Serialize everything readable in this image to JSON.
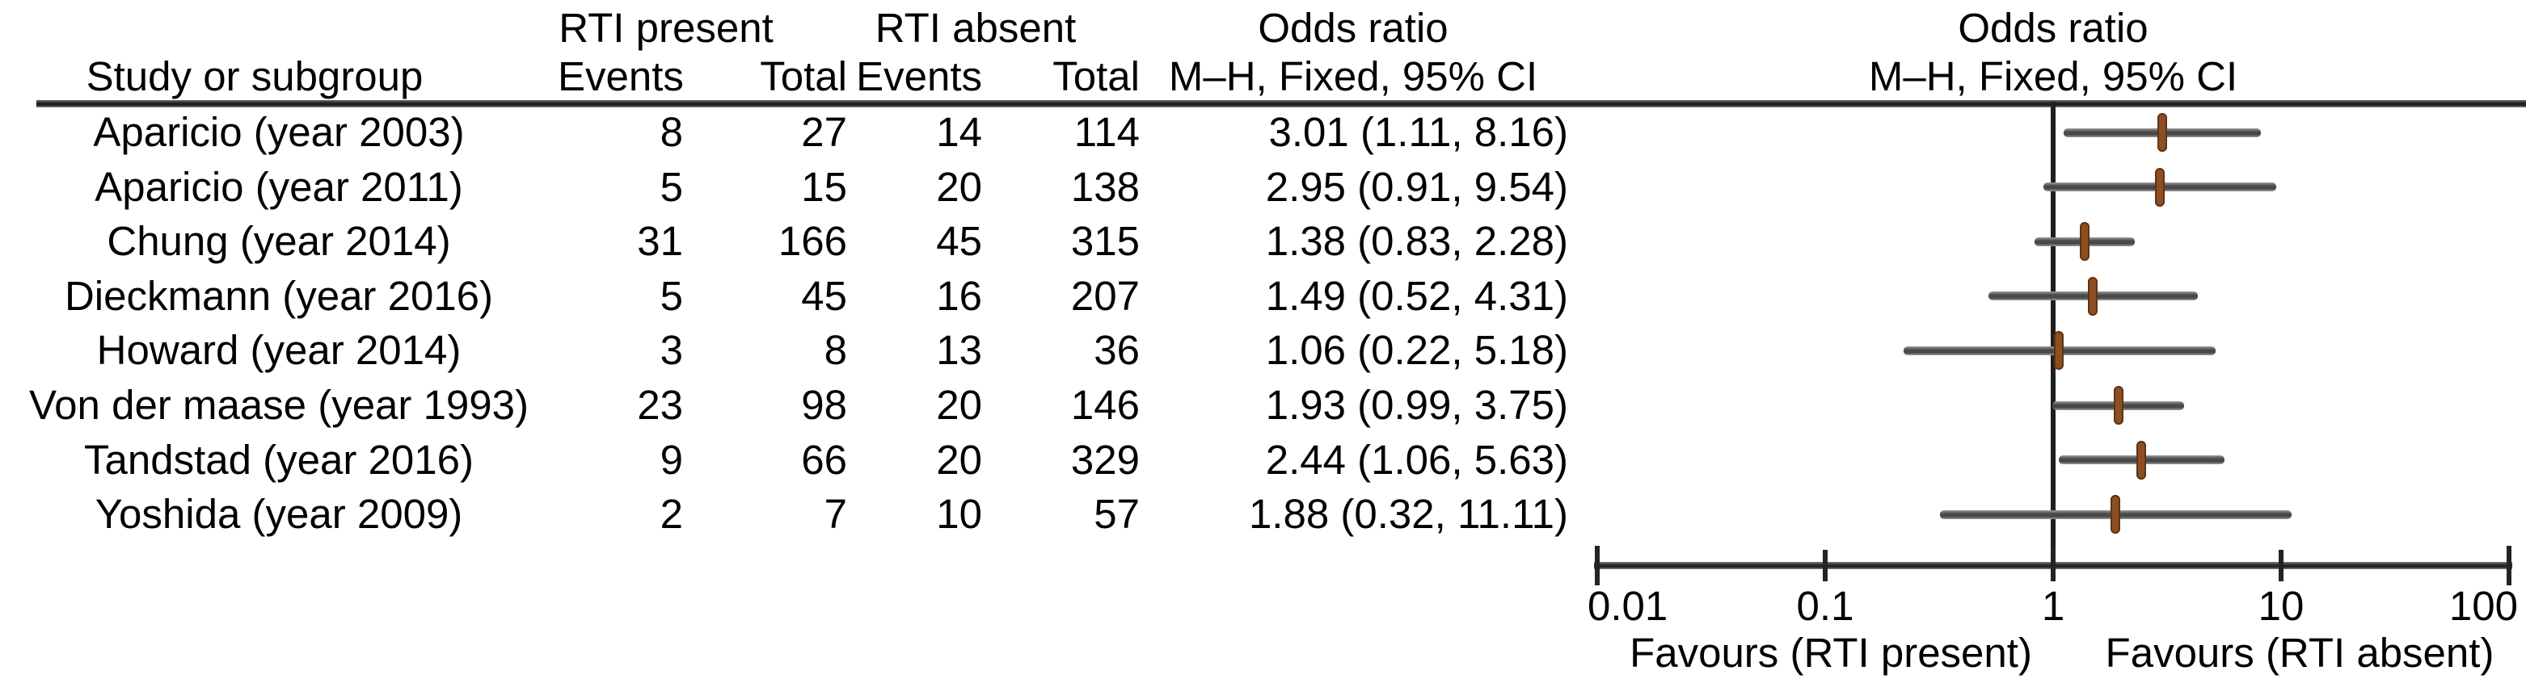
{
  "table": {
    "group_headers": {
      "rti_present": "RTI present",
      "rti_absent": "RTI absent"
    },
    "or_column_header": {
      "line1": "Odds ratio",
      "line2": "M–H, Fixed, 95% CI"
    },
    "column_headers": {
      "study": "Study or subgroup",
      "events_present": "Events",
      "total_present": "Total",
      "events_absent": "Events",
      "total_absent": "Total"
    }
  },
  "plot_header": {
    "line1": "Odds ratio",
    "line2": "M–H, Fixed, 95% CI"
  },
  "axis": {
    "tick_labels": [
      "0.01",
      "0.1",
      "1",
      "10",
      "100"
    ],
    "favours_left": "Favours (RTI present)",
    "favours_right": "Favours (RTI absent)"
  },
  "colors": {
    "text": "#000000",
    "rule": "#1d1d1d",
    "reference_line": "#1f1f1f",
    "ci_line": "#484848",
    "marker": "#8d4e24"
  },
  "chart_data": {
    "type": "forest",
    "effect_measure": "Odds ratio (M–H, Fixed, 95% CI)",
    "x_scale": "log10",
    "xlim": [
      0.01,
      100
    ],
    "x_ticks": [
      0.01,
      0.1,
      1,
      10,
      100
    ],
    "reference_line": 1,
    "legend_left": "Favours (RTI present)",
    "legend_right": "Favours (RTI absent)",
    "studies": [
      {
        "label": "Aparicio (year 2003)",
        "events_present": 8,
        "total_present": 27,
        "events_absent": 14,
        "total_absent": 114,
        "or": 3.01,
        "ci_low": 1.11,
        "ci_high": 8.16,
        "or_text": "3.01 (1.11, 8.16)"
      },
      {
        "label": "Aparicio (year 2011)",
        "events_present": 5,
        "total_present": 15,
        "events_absent": 20,
        "total_absent": 138,
        "or": 2.95,
        "ci_low": 0.91,
        "ci_high": 9.54,
        "or_text": "2.95 (0.91, 9.54)"
      },
      {
        "label": "Chung (year 2014)",
        "events_present": 31,
        "total_present": 166,
        "events_absent": 45,
        "total_absent": 315,
        "or": 1.38,
        "ci_low": 0.83,
        "ci_high": 2.28,
        "or_text": "1.38 (0.83, 2.28)"
      },
      {
        "label": "Dieckmann (year 2016)",
        "events_present": 5,
        "total_present": 45,
        "events_absent": 16,
        "total_absent": 207,
        "or": 1.49,
        "ci_low": 0.52,
        "ci_high": 4.31,
        "or_text": "1.49 (0.52, 4.31)"
      },
      {
        "label": "Howard (year 2014)",
        "events_present": 3,
        "total_present": 8,
        "events_absent": 13,
        "total_absent": 36,
        "or": 1.06,
        "ci_low": 0.22,
        "ci_high": 5.18,
        "or_text": "1.06 (0.22, 5.18)"
      },
      {
        "label": "Von der maase (year 1993)",
        "events_present": 23,
        "total_present": 98,
        "events_absent": 20,
        "total_absent": 146,
        "or": 1.93,
        "ci_low": 0.99,
        "ci_high": 3.75,
        "or_text": "1.93 (0.99, 3.75)"
      },
      {
        "label": "Tandstad (year 2016)",
        "events_present": 9,
        "total_present": 66,
        "events_absent": 20,
        "total_absent": 329,
        "or": 2.44,
        "ci_low": 1.06,
        "ci_high": 5.63,
        "or_text": "2.44 (1.06, 5.63)"
      },
      {
        "label": "Yoshida (year 2009)",
        "events_present": 2,
        "total_present": 7,
        "events_absent": 10,
        "total_absent": 57,
        "or": 1.88,
        "ci_low": 0.32,
        "ci_high": 11.11,
        "or_text": "1.88 (0.32, 11.11)"
      }
    ]
  }
}
